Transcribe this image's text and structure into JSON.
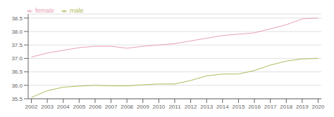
{
  "chart_data": {
    "type": "line",
    "x": [
      2002,
      2003,
      2004,
      2005,
      2006,
      2007,
      2008,
      2009,
      2010,
      2011,
      2012,
      2013,
      2014,
      2015,
      2016,
      2017,
      2018,
      2019,
      2020
    ],
    "series": [
      {
        "name": "female",
        "color": "#e8a0b4",
        "values": [
          37.05,
          37.2,
          37.3,
          37.4,
          37.45,
          37.45,
          37.38,
          37.45,
          37.5,
          37.55,
          37.65,
          37.75,
          37.85,
          37.9,
          37.95,
          38.1,
          38.25,
          38.47,
          38.5
        ]
      },
      {
        "name": "male",
        "color": "#b0ba5a",
        "values": [
          35.55,
          35.8,
          35.93,
          35.97,
          36.0,
          35.98,
          35.98,
          36.02,
          36.05,
          36.05,
          36.18,
          36.35,
          36.42,
          36.42,
          36.55,
          36.75,
          36.9,
          36.98,
          37.0
        ]
      }
    ],
    "xlim": [
      2001.8,
      2020.2
    ],
    "xticks": [
      2002,
      2003,
      2004,
      2005,
      2006,
      2007,
      2008,
      2009,
      2010,
      2011,
      2012,
      2013,
      2014,
      2015,
      2016,
      2017,
      2018,
      2019,
      2020
    ],
    "ylim": [
      35.5,
      38.65
    ],
    "yticks": [
      35.5,
      {
        "value": 36.0,
        "label": "36.0"
      },
      36.5,
      {
        "value": 37.0,
        "label": "37.0"
      },
      37.5,
      {
        "value": 38.0,
        "label": "38.0"
      },
      38.5
    ],
    "grid": true,
    "legend": "upper left"
  }
}
